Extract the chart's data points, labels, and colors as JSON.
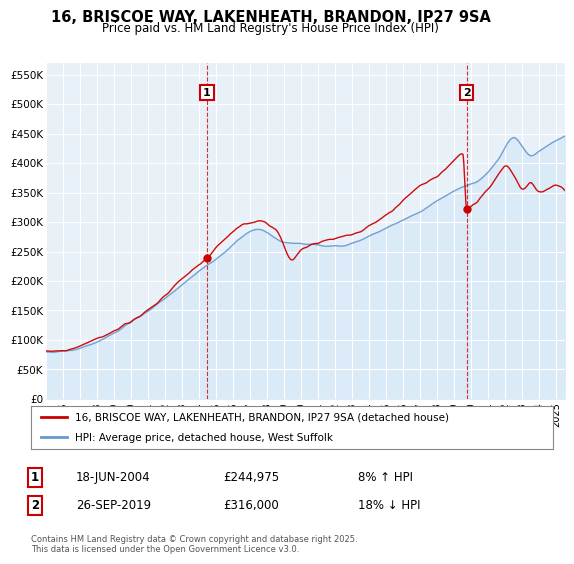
{
  "title": "16, BRISCOE WAY, LAKENHEATH, BRANDON, IP27 9SA",
  "subtitle": "Price paid vs. HM Land Registry's House Price Index (HPI)",
  "ylabel_ticks": [
    "£0",
    "£50K",
    "£100K",
    "£150K",
    "£200K",
    "£250K",
    "£300K",
    "£350K",
    "£400K",
    "£450K",
    "£500K",
    "£550K"
  ],
  "ytick_values": [
    0,
    50000,
    100000,
    150000,
    200000,
    250000,
    300000,
    350000,
    400000,
    450000,
    500000,
    550000
  ],
  "ylim": [
    0,
    570000
  ],
  "xlim_start": 1995.0,
  "xlim_end": 2025.5,
  "xticks": [
    1995,
    1996,
    1997,
    1998,
    1999,
    2000,
    2001,
    2002,
    2003,
    2004,
    2005,
    2006,
    2007,
    2008,
    2009,
    2010,
    2011,
    2012,
    2013,
    2014,
    2015,
    2016,
    2017,
    2018,
    2019,
    2020,
    2021,
    2022,
    2023,
    2024,
    2025
  ],
  "red_line_color": "#cc0000",
  "blue_line_color": "#6699cc",
  "blue_fill_color": "#d6e8f7",
  "marker1_date": 2004.46,
  "marker1_value": 244975,
  "marker2_date": 2019.73,
  "marker2_value": 316000,
  "legend_line1": "16, BRISCOE WAY, LAKENHEATH, BRANDON, IP27 9SA (detached house)",
  "legend_line2": "HPI: Average price, detached house, West Suffolk",
  "table_row1": [
    "1",
    "18-JUN-2004",
    "£244,975",
    "8% ↑ HPI"
  ],
  "table_row2": [
    "2",
    "26-SEP-2019",
    "£316,000",
    "18% ↓ HPI"
  ],
  "footnote": "Contains HM Land Registry data © Crown copyright and database right 2025.\nThis data is licensed under the Open Government Licence v3.0."
}
